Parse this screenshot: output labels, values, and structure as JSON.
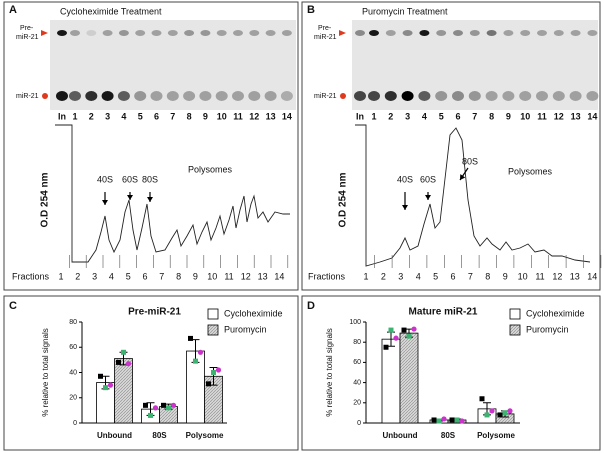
{
  "panels": [
    {
      "label": "A",
      "title": "Cycloheximide Treatment",
      "precursor_label": [
        "Pre-",
        "miR-21"
      ],
      "mature_label": "miR-21",
      "lanes": [
        "In",
        "1",
        "2",
        "3",
        "4",
        "5",
        "6",
        "7",
        "8",
        "9",
        "10",
        "11",
        "12",
        "13",
        "14"
      ],
      "y_axis_label": "O.D 254 nm",
      "annotations": [
        "40S",
        "60S",
        "80S",
        "Polysomes"
      ],
      "fractions_label": "Fractions",
      "fractions": [
        "1",
        "2",
        "3",
        "4",
        "5",
        "6",
        "7",
        "8",
        "9",
        "10",
        "11",
        "12",
        "13",
        "14"
      ]
    },
    {
      "label": "B",
      "title": "Puromycin Treatment",
      "precursor_label": [
        "Pre-",
        "miR-21"
      ],
      "mature_label": "miR-21",
      "lanes": [
        "In",
        "1",
        "2",
        "3",
        "4",
        "5",
        "6",
        "7",
        "8",
        "9",
        "10",
        "11",
        "12",
        "13",
        "14"
      ],
      "y_axis_label": "O.D 254 nm",
      "annotations": [
        "40S",
        "60S",
        "80S",
        "Polysomes"
      ],
      "fractions_label": "Fractions",
      "fractions": [
        "1",
        "2",
        "3",
        "4",
        "5",
        "6",
        "7",
        "8",
        "9",
        "10",
        "11",
        "12",
        "13",
        "14"
      ]
    }
  ],
  "chart_data": [
    {
      "type": "bar",
      "panel_label": "C",
      "title": "Pre-miR-21",
      "y_label": "% relative to total signals",
      "categories": [
        "Unbound",
        "80S",
        "Polysome"
      ],
      "ylim": [
        0,
        80
      ],
      "yticks": [
        0,
        20,
        40,
        60,
        80
      ],
      "replicate_colors": [
        "#000000",
        "#3cb371",
        "#cc33cc"
      ],
      "series": [
        {
          "name": "Cycloheximide",
          "color": "#ffffff",
          "pattern": "solid",
          "values": [
            32,
            11,
            57
          ],
          "errors": [
            5,
            5,
            9
          ],
          "replicates": [
            [
              37,
              28,
              30
            ],
            [
              14,
              6,
              12
            ],
            [
              67,
              49,
              56
            ]
          ]
        },
        {
          "name": "Puromycin",
          "color": "#bbbbbb",
          "pattern": "hatch",
          "values": [
            51,
            13,
            37
          ],
          "errors": [
            5,
            2,
            7
          ],
          "replicates": [
            [
              48,
              56,
              47
            ],
            [
              14,
              12,
              14
            ],
            [
              31,
              40,
              42
            ]
          ]
        }
      ]
    },
    {
      "type": "bar",
      "panel_label": "D",
      "title": "Mature miR-21",
      "y_label": "% relative to total signals",
      "categories": [
        "Unbound",
        "80S",
        "Polysome"
      ],
      "ylim": [
        0,
        100
      ],
      "yticks": [
        0,
        20,
        40,
        60,
        80,
        100
      ],
      "replicate_colors": [
        "#000000",
        "#3cb371",
        "#cc33cc"
      ],
      "series": [
        {
          "name": "Cycloheximide",
          "color": "#ffffff",
          "pattern": "solid",
          "values": [
            83,
            3,
            14
          ],
          "errors": [
            7,
            1,
            6
          ],
          "replicates": [
            [
              75,
              92,
              84
            ],
            [
              3,
              2,
              4
            ],
            [
              24,
              8,
              12
            ]
          ]
        },
        {
          "name": "Puromycin",
          "color": "#bbbbbb",
          "pattern": "hatch",
          "values": [
            89,
            3,
            9
          ],
          "errors": [
            4,
            1,
            3
          ],
          "replicates": [
            [
              92,
              86,
              93
            ],
            [
              3,
              3,
              2
            ],
            [
              8,
              10,
              12
            ]
          ]
        }
      ]
    }
  ]
}
